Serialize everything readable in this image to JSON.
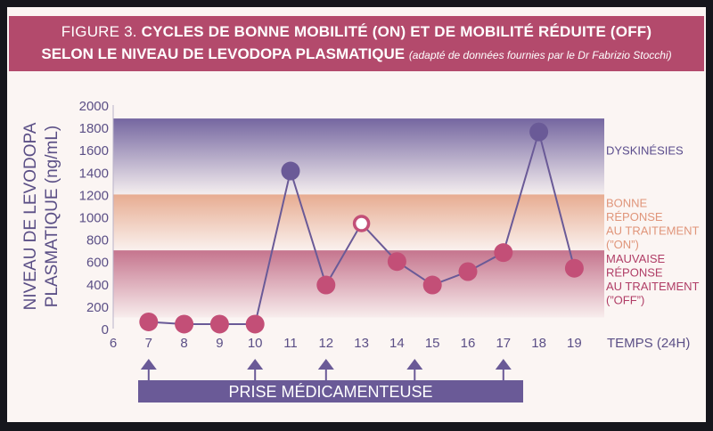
{
  "title": {
    "figure_label": "FIGURE 3.",
    "line1": "CYCLES DE BONNE MOBILITÉ (ON) ET DE MOBILITÉ RÉDUITE (OFF)",
    "line2": "SELON LE NIVEAU DE LEVODOPA PLASMATIQUE",
    "note": "(adapté de données fournies par le Dr Fabrizio Stocchi)"
  },
  "colors": {
    "title_bg": "#b34a6c",
    "zone_dyskinesia": "#6e5f9c",
    "zone_on": "#e6a88c",
    "zone_off": "#b34a6c",
    "point_off": "#c34f77",
    "point_dysk": "#6a5a97",
    "line": "#6a5a97",
    "axis_text": "#5b4f86"
  },
  "chart_data": {
    "type": "line",
    "ylabel_line1": "NIVEAU DE LEVODOPA",
    "ylabel_line2": "PLASMATIQUE (ng/mL)",
    "xlabel": "TEMPS (24H)",
    "xlim": [
      6,
      19
    ],
    "ylim": [
      0,
      2000
    ],
    "x_ticks": [
      6,
      7,
      8,
      9,
      10,
      11,
      12,
      13,
      14,
      15,
      16,
      17,
      18,
      19
    ],
    "y_ticks": [
      0,
      200,
      400,
      600,
      800,
      1000,
      1200,
      1400,
      1600,
      1800,
      2000
    ],
    "zones": [
      {
        "from": 1200,
        "to": 1880,
        "label_lines": [
          "DYSKINÉSIES"
        ],
        "color": "#6e5f9c",
        "label_color": "#5a4c8c"
      },
      {
        "from": 700,
        "to": 1200,
        "label_lines": [
          "BONNE",
          "RÉPONSE",
          "AU TRAITEMENT",
          "(”ON”)"
        ],
        "color": "#e6a88c",
        "label_color": "#e0957a"
      },
      {
        "from": 100,
        "to": 700,
        "label_lines": [
          "MAUVAISE",
          "RÉPONSE",
          "AU TRAITEMENT",
          "(”OFF”)"
        ],
        "color": "#b34a6c",
        "label_color": "#b03d66"
      }
    ],
    "series": [
      {
        "x": [
          7,
          8,
          9,
          10,
          11,
          12,
          13,
          14,
          15,
          16,
          17,
          18,
          19
        ],
        "y": [
          60,
          40,
          40,
          40,
          1410,
          390,
          940,
          600,
          390,
          510,
          680,
          1760,
          540
        ],
        "point_style": [
          "off",
          "off",
          "off",
          "off",
          "dysk",
          "off",
          "on",
          "off",
          "off",
          "off",
          "off",
          "dysk",
          "off"
        ]
      }
    ],
    "dose_times": [
      7,
      10,
      12,
      14.5,
      17
    ],
    "dose_label": "PRISE MÉDICAMENTEUSE"
  }
}
